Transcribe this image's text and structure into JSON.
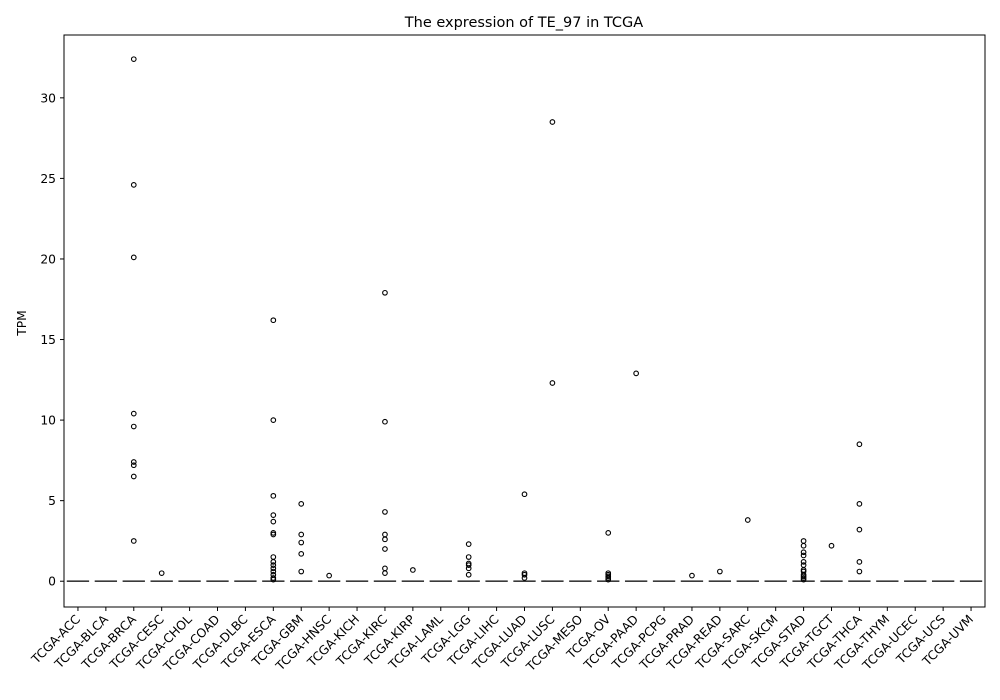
{
  "chart_data": {
    "type": "box",
    "title": "The expression of TE_97 in TCGA",
    "xlabel": "",
    "ylabel": "TPM",
    "ylim": [
      -1.6,
      33.9
    ],
    "yticks": [
      0,
      5,
      10,
      15,
      20,
      25,
      30
    ],
    "grid": false,
    "categories": [
      "TCGA-ACC",
      "TCGA-BLCA",
      "TCGA-BRCA",
      "TCGA-CESC",
      "TCGA-CHOL",
      "TCGA-COAD",
      "TCGA-DLBC",
      "TCGA-ESCA",
      "TCGA-GBM",
      "TCGA-HNSC",
      "TCGA-KICH",
      "TCGA-KIRC",
      "TCGA-KIRP",
      "TCGA-LAML",
      "TCGA-LGG",
      "TCGA-LIHC",
      "TCGA-LUAD",
      "TCGA-LUSC",
      "TCGA-MESO",
      "TCGA-OV",
      "TCGA-PAAD",
      "TCGA-PCPG",
      "TCGA-PRAD",
      "TCGA-READ",
      "TCGA-SARC",
      "TCGA-SKCM",
      "TCGA-STAD",
      "TCGA-TGCT",
      "TCGA-THCA",
      "TCGA-THYM",
      "TCGA-UCEC",
      "TCGA-UCS",
      "TCGA-UVM"
    ],
    "medians": [
      0,
      0,
      0,
      0,
      0,
      0,
      0,
      0,
      0,
      0,
      0,
      0,
      0,
      0,
      0,
      0,
      0,
      0,
      0,
      0,
      0,
      0,
      0,
      0,
      0,
      0,
      0,
      0,
      0,
      0,
      0,
      0,
      0
    ],
    "outliers": [
      [],
      [],
      [
        32.4,
        24.6,
        20.1,
        10.4,
        9.6,
        7.4,
        7.2,
        6.5,
        2.5
      ],
      [
        0.5
      ],
      [],
      [],
      [],
      [
        16.2,
        10.0,
        5.3,
        4.1,
        3.7,
        3.0,
        2.9,
        1.5,
        1.2,
        1.0,
        0.8,
        0.6,
        0.4,
        0.2,
        0.1
      ],
      [
        4.8,
        2.9,
        2.4,
        1.7,
        0.6
      ],
      [
        0.35
      ],
      [],
      [
        17.9,
        9.9,
        4.3,
        2.9,
        2.6,
        2.0,
        0.8,
        0.5
      ],
      [
        0.7
      ],
      [],
      [
        2.3,
        1.5,
        1.1,
        1.0,
        0.8,
        0.4
      ],
      [],
      [
        5.4,
        0.5,
        0.4,
        0.2
      ],
      [
        28.5,
        12.3
      ],
      [],
      [
        3.0,
        0.5,
        0.4,
        0.3,
        0.2,
        0.1
      ],
      [
        12.9
      ],
      [],
      [
        0.35
      ],
      [
        0.6
      ],
      [
        3.8
      ],
      [],
      [
        2.5,
        2.2,
        1.8,
        1.6,
        1.2,
        1.0,
        0.7,
        0.6,
        0.4,
        0.3,
        0.2,
        0.1
      ],
      [
        2.2
      ],
      [
        8.5,
        4.8,
        3.2,
        1.2,
        0.6
      ],
      [],
      [],
      [],
      []
    ]
  }
}
